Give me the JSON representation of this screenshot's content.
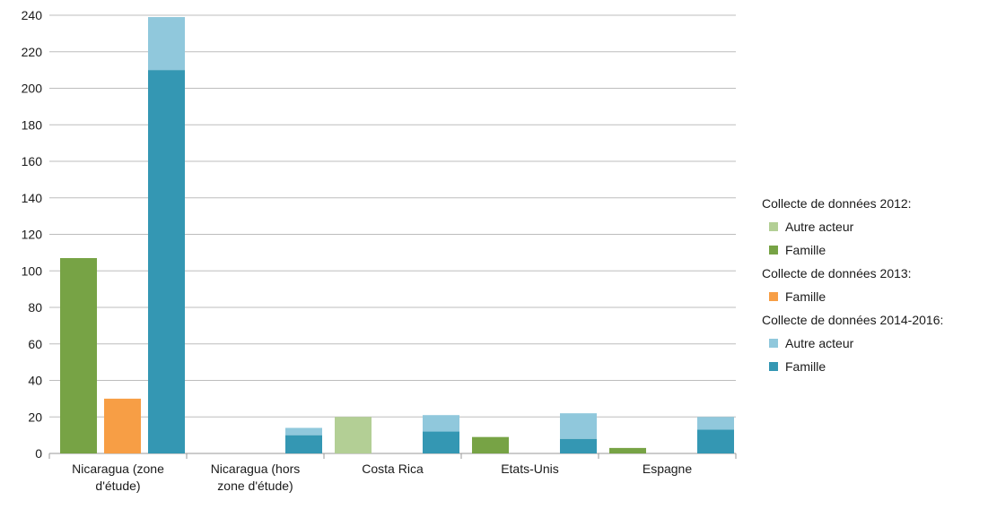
{
  "chart_data": {
    "type": "bar",
    "subtype": "grouped-stacked",
    "categories": [
      "Nicaragua (zone d'étude)",
      "Nicaragua (hors zone d'étude)",
      "Costa Rica",
      "Etats-Unis",
      "Espagne"
    ],
    "category_lines": [
      [
        "Nicaragua (zone",
        "d'étude)"
      ],
      [
        "Nicaragua (hors",
        "zone d'étude)"
      ],
      [
        "Costa Rica"
      ],
      [
        "Etats-Unis"
      ],
      [
        "Espagne"
      ]
    ],
    "ylim": [
      0,
      240
    ],
    "yticks": [
      0,
      20,
      40,
      60,
      80,
      100,
      120,
      140,
      160,
      180,
      200,
      220,
      240
    ],
    "grid": true,
    "legend_position": "right",
    "groups": [
      {
        "title": "Collecte de données 2012:",
        "series": [
          {
            "name": "Autre acteur",
            "color": "#b3cf95",
            "values": [
              0,
              0,
              20,
              0,
              0
            ]
          },
          {
            "name": "Famille",
            "color": "#77a345",
            "values": [
              107,
              0,
              0,
              9,
              3
            ]
          }
        ]
      },
      {
        "title": "Collecte de données 2013:",
        "series": [
          {
            "name": "Famille",
            "color": "#f79e45",
            "values": [
              30,
              0,
              0,
              0,
              0
            ]
          }
        ]
      },
      {
        "title": "Collecte de données 2014-2016:",
        "series": [
          {
            "name": "Autre acteur",
            "color": "#90c8dc",
            "values": [
              29,
              4,
              9,
              14,
              7
            ]
          },
          {
            "name": "Famille",
            "color": "#3497b3",
            "values": [
              210,
              10,
              12,
              8,
              13
            ]
          }
        ]
      }
    ]
  }
}
